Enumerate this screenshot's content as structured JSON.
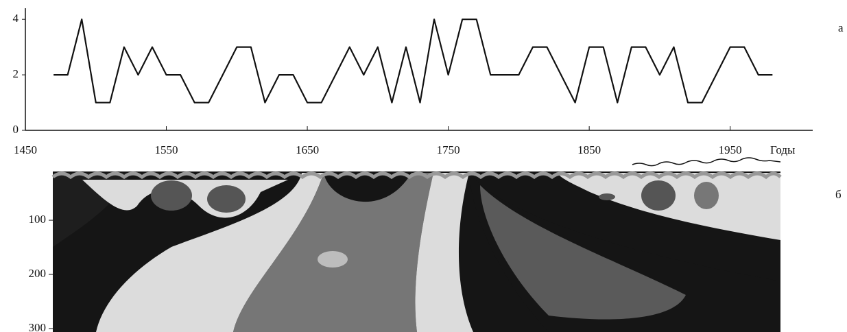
{
  "chart_data": [
    {
      "type": "line",
      "panel_label": "а",
      "xlabel": "Годы",
      "x": [
        1470,
        1480,
        1490,
        1500,
        1510,
        1520,
        1530,
        1540,
        1550,
        1560,
        1570,
        1580,
        1590,
        1600,
        1610,
        1620,
        1630,
        1640,
        1650,
        1660,
        1670,
        1680,
        1690,
        1700,
        1710,
        1720,
        1730,
        1740,
        1750,
        1760,
        1770,
        1780,
        1790,
        1800,
        1810,
        1820,
        1830,
        1840,
        1850,
        1860,
        1870,
        1880,
        1890,
        1900,
        1910,
        1920,
        1930,
        1940,
        1950,
        1960,
        1970,
        1980
      ],
      "values": [
        2,
        2,
        4,
        1,
        1,
        3,
        2,
        3,
        2,
        2,
        1,
        1,
        2,
        3,
        3,
        1,
        2,
        2,
        1,
        1,
        2,
        3,
        2,
        3,
        1,
        3,
        1,
        4,
        2,
        4,
        4,
        2,
        2,
        2,
        3,
        3,
        2,
        1,
        3,
        3,
        1,
        3,
        3,
        2,
        3,
        1,
        1,
        2,
        3,
        3,
        2,
        2
      ],
      "color": "#111111",
      "xlim": [
        1450,
        2010
      ],
      "ylim": [
        0,
        4.4
      ],
      "xticks": [
        1450,
        1550,
        1650,
        1750,
        1850,
        1950
      ],
      "yticks": [
        0,
        2,
        4
      ]
    },
    {
      "type": "scalogram",
      "panel_label": "б",
      "ylim": [
        10,
        300
      ],
      "yticks": [
        100,
        200,
        300
      ]
    }
  ]
}
